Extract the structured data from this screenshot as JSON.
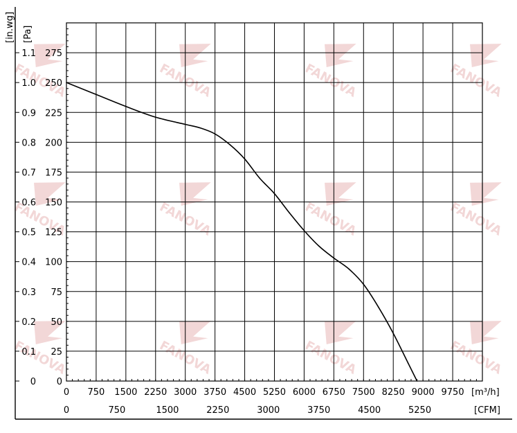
{
  "chart_data": {
    "type": "line",
    "title": "",
    "watermark_text": "FANOVA",
    "colors": {
      "background": "#ffffff",
      "grid": "#000000",
      "curve": "#000000",
      "watermark": "#e9b7b7"
    },
    "grid": true,
    "x_axis": {
      "unit_label": "[m³/h]",
      "range": [
        0,
        10500
      ],
      "ticks": [
        0,
        750,
        1500,
        2250,
        3000,
        3750,
        4500,
        5250,
        6000,
        6750,
        7500,
        8250,
        9000,
        9750
      ]
    },
    "x_axis_secondary": {
      "unit_label": "[CFM]",
      "ticks": [
        0,
        750,
        1500,
        2250,
        3000,
        3750,
        4500,
        5250
      ]
    },
    "y_axis": {
      "unit_label": "[Pa]",
      "range": [
        0,
        300
      ],
      "ticks": [
        0,
        25,
        50,
        75,
        100,
        125,
        150,
        175,
        200,
        225,
        250,
        275
      ]
    },
    "y_axis_secondary": {
      "unit_label": "[in.wg]",
      "ticks": [
        "0",
        "0.1",
        "0.2",
        "0.3",
        "0.4",
        "0.5",
        "0.6",
        "0.7",
        "0.8",
        "0.9",
        "1.0",
        "1.1"
      ]
    },
    "series": [
      {
        "x": [
          0,
          750,
          1500,
          2250,
          3000,
          3375,
          3750,
          4125,
          4500,
          4875,
          5250,
          5625,
          6000,
          6375,
          6750,
          7125,
          7500,
          7875,
          8250,
          8625,
          8850
        ],
        "y": [
          250,
          240,
          230,
          221,
          215,
          212,
          207,
          198,
          186,
          170,
          157,
          141,
          126,
          113,
          103,
          94,
          81,
          62,
          40,
          15,
          0
        ]
      }
    ]
  }
}
